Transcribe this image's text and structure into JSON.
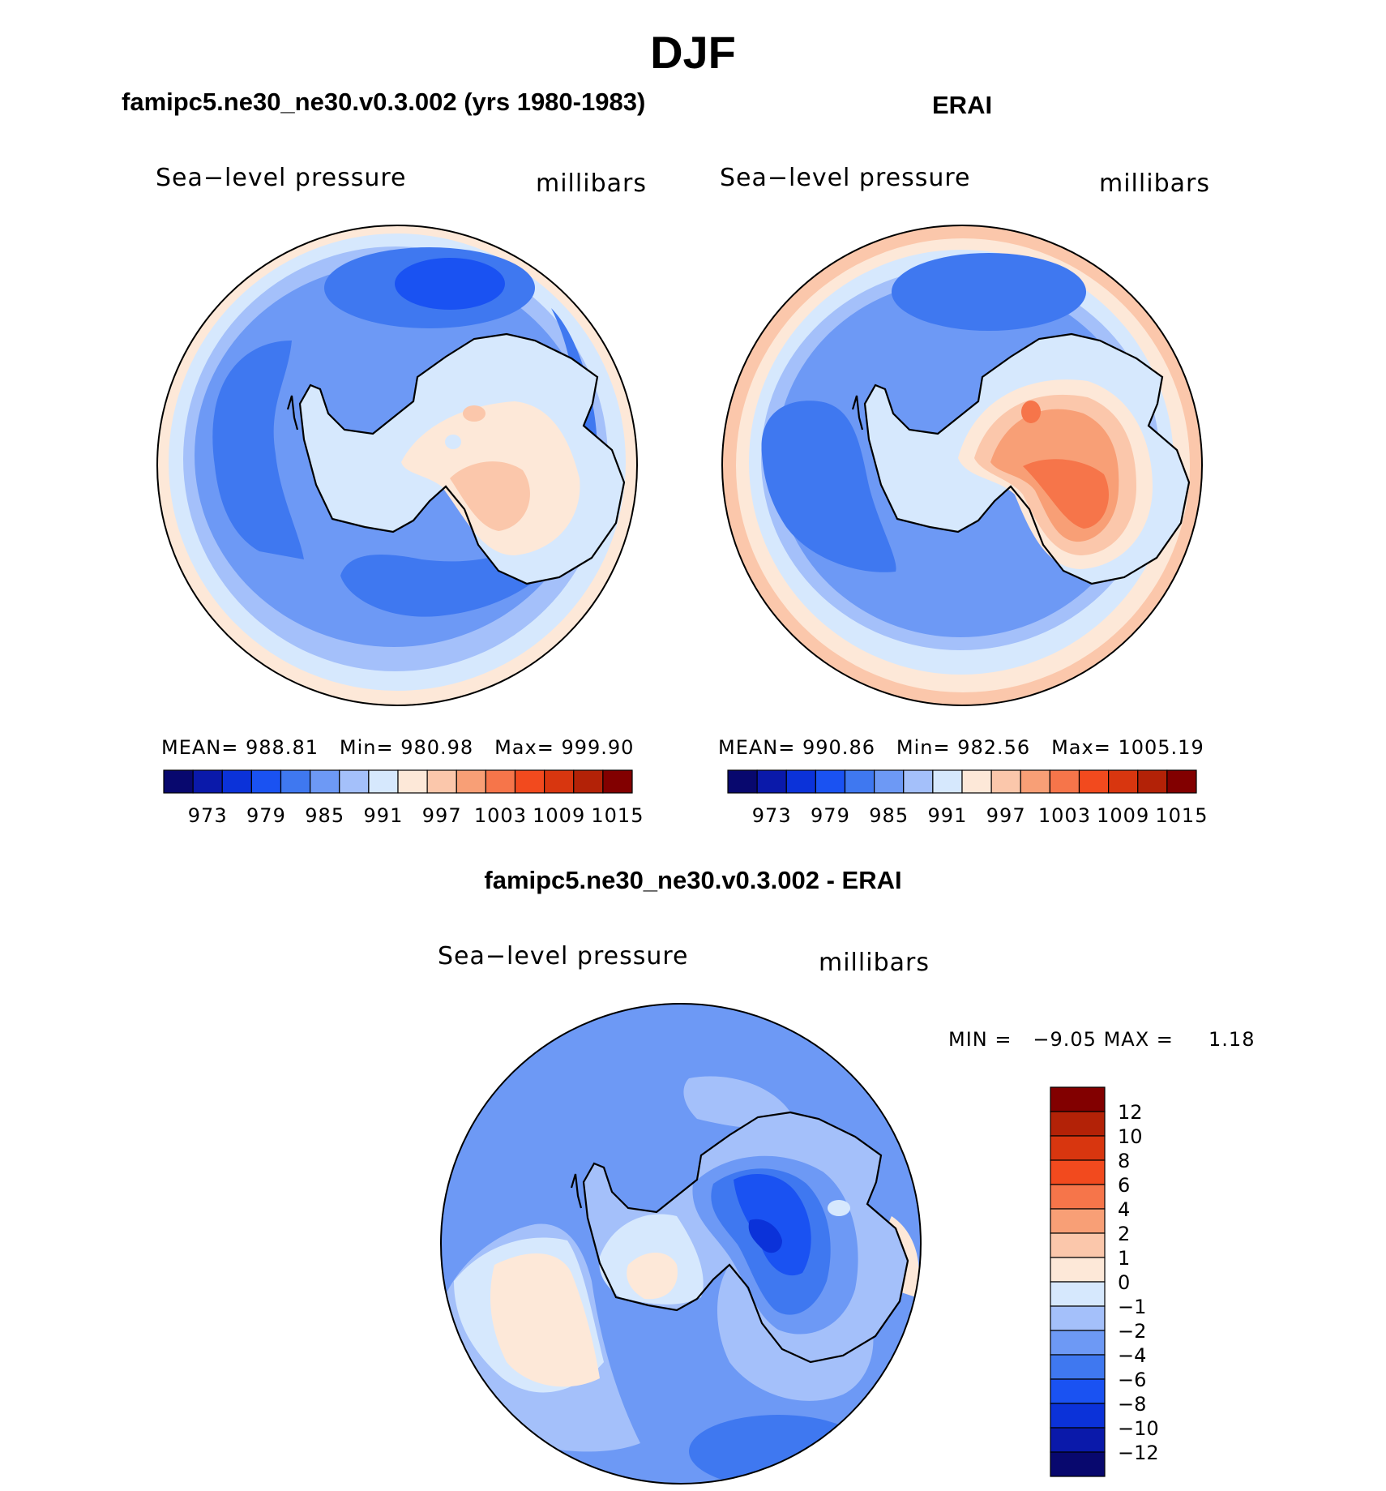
{
  "season": "DJF",
  "colors": {
    "scale": [
      "#08086e",
      "#0a19aa",
      "#0b32d9",
      "#1a52f2",
      "#3f78f0",
      "#6d99f5",
      "#a4c0fa",
      "#d6e8fd",
      "#fde8d8",
      "#fbc7ab",
      "#f89f76",
      "#f6754a",
      "#f24a1e",
      "#d8360f",
      "#b32207",
      "#820000"
    ],
    "coast": "#000000"
  },
  "panels": [
    {
      "title": "famipc5.ne30_ne30.v0.3.002 (yrs 1980-1983)",
      "variable": "Sea−level pressure",
      "units": "millibars",
      "stats": {
        "mean_label": "MEAN=",
        "mean": "988.81",
        "min_label": "Min=",
        "min": "980.98",
        "max_label": "Max=",
        "max": "999.90"
      },
      "colorbar_labels": [
        "973",
        "979",
        "985",
        "991",
        "997",
        "1003",
        "1009",
        "1015"
      ]
    },
    {
      "title": "ERAI",
      "variable": "Sea−level pressure",
      "units": "millibars",
      "stats": {
        "mean_label": "MEAN=",
        "mean": "990.86",
        "min_label": "Min=",
        "min": "982.56",
        "max_label": "Max=",
        "max": "1005.19"
      },
      "colorbar_labels": [
        "973",
        "979",
        "985",
        "991",
        "997",
        "1003",
        "1009",
        "1015"
      ]
    },
    {
      "title": "famipc5.ne30_ne30.v0.3.002 - ERAI",
      "variable": "Sea−level pressure",
      "units": "millibars",
      "stats": {
        "min_label": "MIN =",
        "min": "−9.05",
        "max_label": "MAX =",
        "max": "1.18"
      },
      "colorbar_labels": [
        "12",
        "10",
        "8",
        "6",
        "4",
        "2",
        "1",
        "0",
        "−1",
        "−2",
        "−4",
        "−6",
        "−8",
        "−10",
        "−12"
      ]
    }
  ]
}
